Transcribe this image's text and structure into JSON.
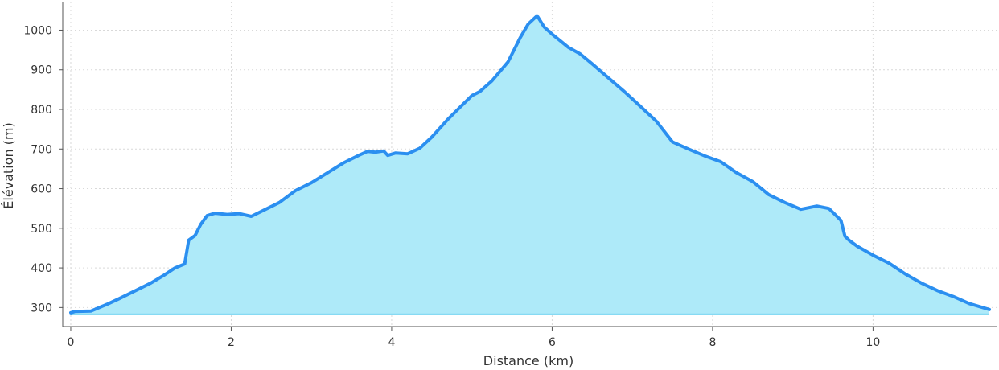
{
  "chart_data": {
    "type": "area",
    "xlabel": "Distance (km)",
    "ylabel": "Élévation (m)",
    "xlim": [
      -0.1,
      11.55
    ],
    "ylim": [
      252,
      1072
    ],
    "xticks": [
      0,
      2,
      4,
      6,
      8,
      10
    ],
    "yticks": [
      300,
      400,
      500,
      600,
      700,
      800,
      900,
      1000
    ],
    "grid": true,
    "baseline": 283,
    "colors": {
      "line": "#2b8ff0",
      "fill": "#aeeaf9",
      "baseline": "#87daf3"
    },
    "x": [
      0,
      0.05,
      0.25,
      0.45,
      0.6,
      0.8,
      1.0,
      1.15,
      1.3,
      1.42,
      1.47,
      1.55,
      1.62,
      1.7,
      1.8,
      1.95,
      2.1,
      2.25,
      2.45,
      2.6,
      2.8,
      3.0,
      3.2,
      3.4,
      3.6,
      3.7,
      3.8,
      3.9,
      3.95,
      4.05,
      4.2,
      4.35,
      4.5,
      4.7,
      4.85,
      5.0,
      5.1,
      5.25,
      5.45,
      5.6,
      5.7,
      5.8,
      5.82,
      5.9,
      6.0,
      6.2,
      6.35,
      6.5,
      6.7,
      6.9,
      7.1,
      7.3,
      7.5,
      7.7,
      7.9,
      8.1,
      8.3,
      8.5,
      8.7,
      8.9,
      9.1,
      9.3,
      9.45,
      9.6,
      9.65,
      9.7,
      9.8,
      10.0,
      10.2,
      10.4,
      10.6,
      10.8,
      11.0,
      11.2,
      11.45
    ],
    "y": [
      287,
      290,
      291,
      308,
      322,
      342,
      362,
      380,
      400,
      410,
      470,
      482,
      510,
      532,
      538,
      535,
      537,
      530,
      550,
      565,
      595,
      615,
      640,
      665,
      685,
      694,
      692,
      695,
      684,
      690,
      688,
      702,
      730,
      775,
      805,
      835,
      845,
      872,
      920,
      980,
      1015,
      1034,
      1034,
      1008,
      990,
      957,
      940,
      915,
      880,
      845,
      808,
      770,
      718,
      700,
      683,
      668,
      640,
      618,
      585,
      565,
      548,
      556,
      550,
      520,
      480,
      470,
      455,
      432,
      412,
      385,
      362,
      343,
      328,
      310,
      295
    ]
  }
}
